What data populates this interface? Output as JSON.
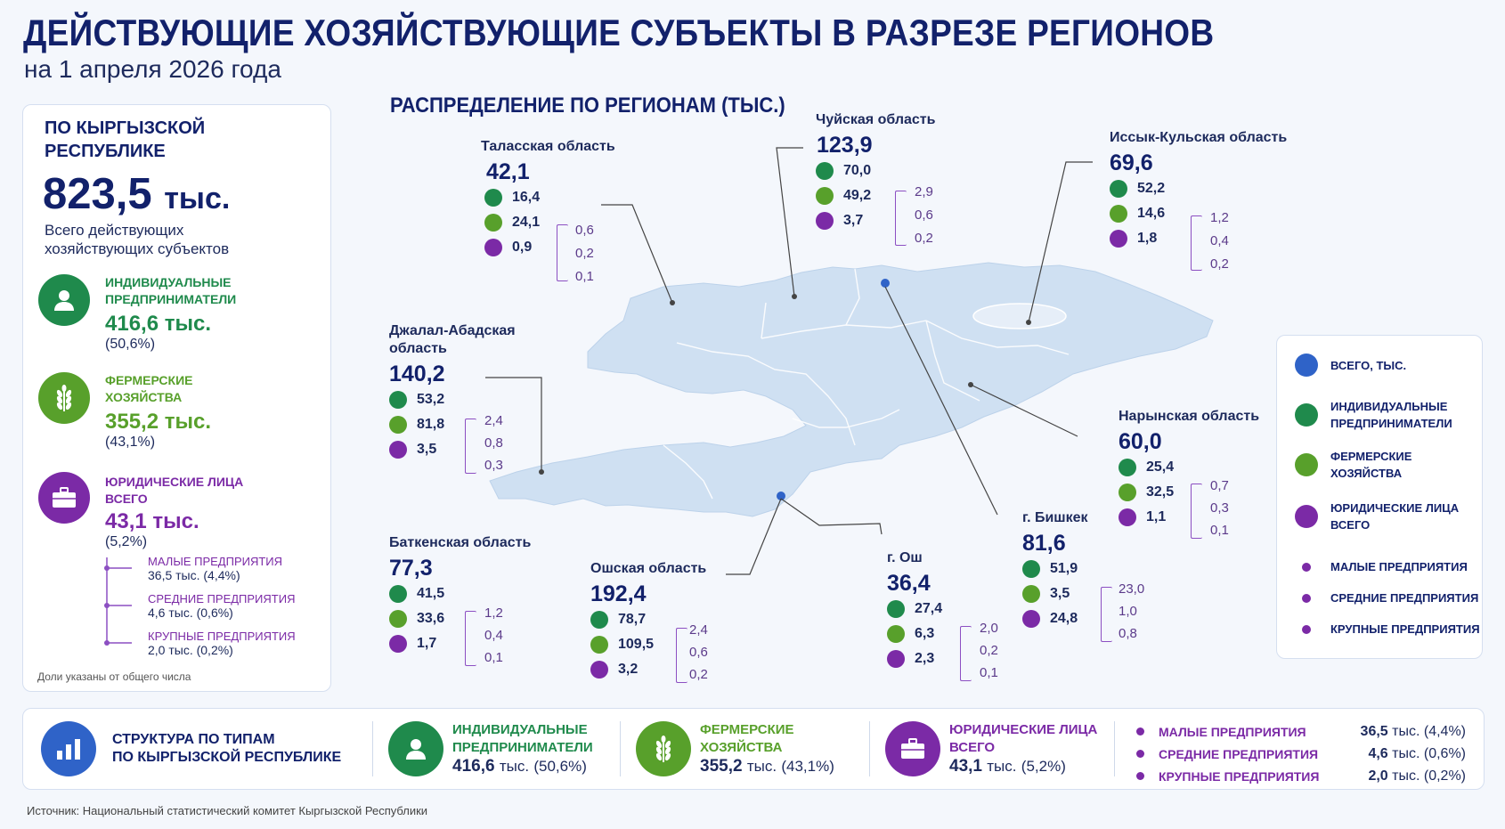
{
  "title": "ДЕЙСТВУЮЩИЕ ХОЗЯЙСТВУЮЩИЕ СУБЪЕКТЫ В РАЗРЕЗЕ РЕГИОНОВ",
  "subtitle": "на 1 апреля 2026 года",
  "colors": {
    "navy": "#12216b",
    "green": "#1f8a4c",
    "olive": "#58a02b",
    "purple": "#7b2aa6",
    "blue": "#2f63c8",
    "map": "#cfe0f2"
  },
  "left_panel": {
    "heading_line1": "ПО КЫРГЫЗСКОЙ",
    "heading_line2": "РЕСПУБЛИКЕ",
    "total_value": "823,5",
    "total_unit": "тыс.",
    "total_desc_line1": "Всего действующих",
    "total_desc_line2": "хозяйствующих субъектов",
    "categories": [
      {
        "label_line1": "ИНДИВИДУАЛЬНЫЕ",
        "label_line2": "ПРЕДПРИНИМАТЕЛИ",
        "value": "416,6",
        "unit": "тыс.",
        "share": "(50,6%)",
        "icon": "person-icon"
      },
      {
        "label_line1": "ФЕРМЕРСКИЕ",
        "label_line2": "ХОЗЯЙСТВА",
        "value": "355,2",
        "unit": "тыс.",
        "share": "(43,1%)",
        "icon": "wheat-icon"
      },
      {
        "label_line1": "ЮРИДИЧЕСКИЕ ЛИЦА",
        "label_line2": "ВСЕГО",
        "value": "43,1",
        "unit": "тыс.",
        "share": "(5,2%)",
        "icon": "briefcase-icon"
      }
    ],
    "subcategories": [
      {
        "label": "МАЛЫЕ ПРЕДПРИЯТИЯ",
        "value": "36,5 тыс.  (4,4%)"
      },
      {
        "label": "СРЕДНИЕ ПРЕДПРИЯТИЯ",
        "value": "4,6 тыс.  (0,6%)"
      },
      {
        "label": "КРУПНЫЕ ПРЕДПРИЯТИЯ",
        "value": "2,0 тыс.  (0,2%)"
      }
    ],
    "footnote": "Доли указаны от общего числа"
  },
  "map_title": "РАСПРЕДЕЛЕНИЕ ПО РЕГИОНАМ (ТЫС.)",
  "legend": {
    "items": [
      {
        "label_line1": "ВСЕГО, ТЫС.",
        "label_line2": ""
      },
      {
        "label_line1": "ИНДИВИДУАЛЬНЫЕ",
        "label_line2": "ПРЕДПРИНИМАТЕЛИ"
      },
      {
        "label_line1": "ФЕРМЕРСКИЕ",
        "label_line2": "ХОЗЯЙСТВА"
      },
      {
        "label_line1": "ЮРИДИЧЕСКИЕ ЛИЦА",
        "label_line2": "ВСЕГО"
      },
      {
        "label_line1": "МАЛЫЕ ПРЕДПРИЯТИЯ",
        "label_line2": ""
      },
      {
        "label_line1": "СРЕДНИЕ ПРЕДПРИЯТИЯ",
        "label_line2": ""
      },
      {
        "label_line1": "КРУПНЫЕ ПРЕДПРИЯТИЯ",
        "label_line2": ""
      }
    ]
  },
  "bottom": {
    "title_line1": "СТРУКТУРА ПО ТИПАМ",
    "title_line2": "ПО КЫРГЫЗСКОЙ РЕСПУБЛИКЕ",
    "items": [
      {
        "label_line1": "ИНДИВИДУАЛЬНЫЕ",
        "label_line2": "ПРЕДПРИНИМАТЕЛИ",
        "value": "416,6",
        "unit": "тыс.",
        "share": "(50,6%)"
      },
      {
        "label_line1": "ФЕРМЕРСКИЕ",
        "label_line2": "ХОЗЯЙСТВА",
        "value": "355,2",
        "unit": "тыс.",
        "share": "(43,1%)"
      },
      {
        "label_line1": "ЮРИДИЧЕСКИЕ ЛИЦА",
        "label_line2": "ВСЕГО",
        "value": "43,1",
        "unit": "тыс.",
        "share": "(5,2%)"
      }
    ],
    "subs": [
      {
        "label": "МАЛЫЕ ПРЕДПРИЯТИЯ",
        "value": "36,5",
        "unit": "тыс.",
        "share": "(4,4%)"
      },
      {
        "label": "СРЕДНИЕ ПРЕДПРИЯТИЯ",
        "value": "4,6",
        "unit": "тыс.",
        "share": "(0,6%)"
      },
      {
        "label": "КРУПНЫЕ ПРЕДПРИЯТИЯ",
        "value": "2,0",
        "unit": "тыс.",
        "share": "(0,2%)"
      }
    ]
  },
  "source": "Источник: Национальный статистический комитет Кыргызской Республики",
  "chart_data": {
    "type": "table",
    "title": "РАСПРЕДЕЛЕНИЕ ПО РЕГИОНАМ (ТЫС.)",
    "columns": [
      "Всего",
      "Индивидуальные предприниматели",
      "Фермерские хозяйства",
      "Юридические лица всего",
      "Малые предприятия",
      "Средние предприятия",
      "Крупные предприятия"
    ],
    "regions": [
      {
        "name": "Таласская область",
        "name_line2": "",
        "total": "42,1",
        "ip": "16,4",
        "farm": "24,1",
        "legal": "0,9",
        "small": "0,6",
        "medium": "0,2",
        "large": "0,1"
      },
      {
        "name": "Чуйская область",
        "name_line2": "",
        "total": "123,9",
        "ip": "70,0",
        "farm": "49,2",
        "legal": "3,7",
        "small": "2,9",
        "medium": "0,6",
        "large": "0,2"
      },
      {
        "name": "Иссык-Кульская область",
        "name_line2": "",
        "total": "69,6",
        "ip": "52,2",
        "farm": "14,6",
        "legal": "1,8",
        "small": "1,2",
        "medium": "0,4",
        "large": "0,2"
      },
      {
        "name": "Джалал-Абадская",
        "name_line2": "область",
        "total": "140,2",
        "ip": "53,2",
        "farm": "81,8",
        "legal": "3,5",
        "small": "2,4",
        "medium": "0,8",
        "large": "0,3"
      },
      {
        "name": "Нарынская область",
        "name_line2": "",
        "total": "60,0",
        "ip": "25,4",
        "farm": "32,5",
        "legal": "1,1",
        "small": "0,7",
        "medium": "0,3",
        "large": "0,1"
      },
      {
        "name": "г. Бишкек",
        "name_line2": "",
        "total": "81,6",
        "ip": "51,9",
        "farm": "3,5",
        "legal": "24,8",
        "small": "23,0",
        "medium": "1,0",
        "large": "0,8"
      },
      {
        "name": "Баткенская область",
        "name_line2": "",
        "total": "77,3",
        "ip": "41,5",
        "farm": "33,6",
        "legal": "1,7",
        "small": "1,2",
        "medium": "0,4",
        "large": "0,1"
      },
      {
        "name": "Ошская область",
        "name_line2": "",
        "total": "192,4",
        "ip": "78,7",
        "farm": "109,5",
        "legal": "3,2",
        "small": "2,4",
        "medium": "0,6",
        "large": "0,2"
      },
      {
        "name": "г. Ош",
        "name_line2": "",
        "total": "36,4",
        "ip": "27,4",
        "farm": "6,3",
        "legal": "2,3",
        "small": "2,0",
        "medium": "0,2",
        "large": "0,1"
      }
    ]
  }
}
